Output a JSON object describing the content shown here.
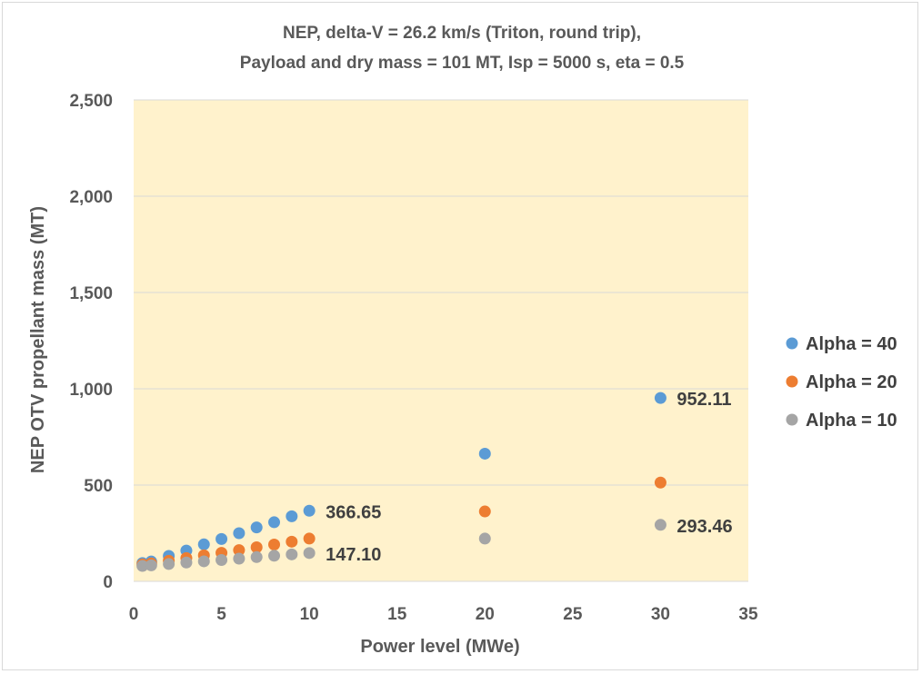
{
  "chart_data": {
    "type": "scatter",
    "title_lines": [
      "NEP, delta-V = 26.2  km/s (Triton, round trip),",
      "Payload and dry mass = 101 MT, Isp = 5000 s, eta = 0.5"
    ],
    "xlabel": "Power level (MWe)",
    "ylabel": "NEP OTV propellant mass (MT)",
    "xlim": [
      0,
      35
    ],
    "ylim": [
      0,
      2500
    ],
    "x_ticks": [
      0,
      5,
      10,
      15,
      20,
      25,
      30,
      35
    ],
    "y_ticks": [
      0,
      500,
      1000,
      1500,
      2000,
      2500
    ],
    "y_tick_labels": [
      "0",
      "500",
      "1,000",
      "1,500",
      "2,000",
      "2,500"
    ],
    "grid": "horizontal",
    "plot_background": "#fff2cc",
    "legend_position": "right",
    "series": [
      {
        "name": "Alpha = 40",
        "color": "#5b9bd5",
        "x": [
          0.5,
          1,
          2,
          3,
          4,
          5,
          6,
          7,
          8,
          9,
          10,
          20,
          30
        ],
        "y": [
          95,
          103,
          132,
          160,
          192,
          220,
          250,
          280,
          307,
          338,
          366.65,
          663,
          952.11
        ],
        "labels": [
          {
            "x": 10,
            "text": "366.65"
          },
          {
            "x": 30,
            "text": "952.11"
          }
        ]
      },
      {
        "name": "Alpha = 20",
        "color": "#ed7d31",
        "x": [
          0.5,
          1,
          2,
          3,
          4,
          5,
          6,
          7,
          8,
          9,
          10,
          20,
          30
        ],
        "y": [
          88,
          93,
          107,
          121,
          135,
          148,
          162,
          177,
          191,
          206,
          222,
          363,
          513
        ],
        "labels": []
      },
      {
        "name": "Alpha = 10",
        "color": "#a5a5a5",
        "x": [
          0.5,
          1,
          2,
          3,
          4,
          5,
          6,
          7,
          8,
          9,
          10,
          20,
          30
        ],
        "y": [
          80,
          83,
          90,
          98,
          104,
          111,
          118,
          126,
          133,
          140,
          147.1,
          222,
          293.46
        ],
        "labels": [
          {
            "x": 10,
            "text": "147.10"
          },
          {
            "x": 30,
            "text": "293.46"
          }
        ]
      }
    ]
  }
}
